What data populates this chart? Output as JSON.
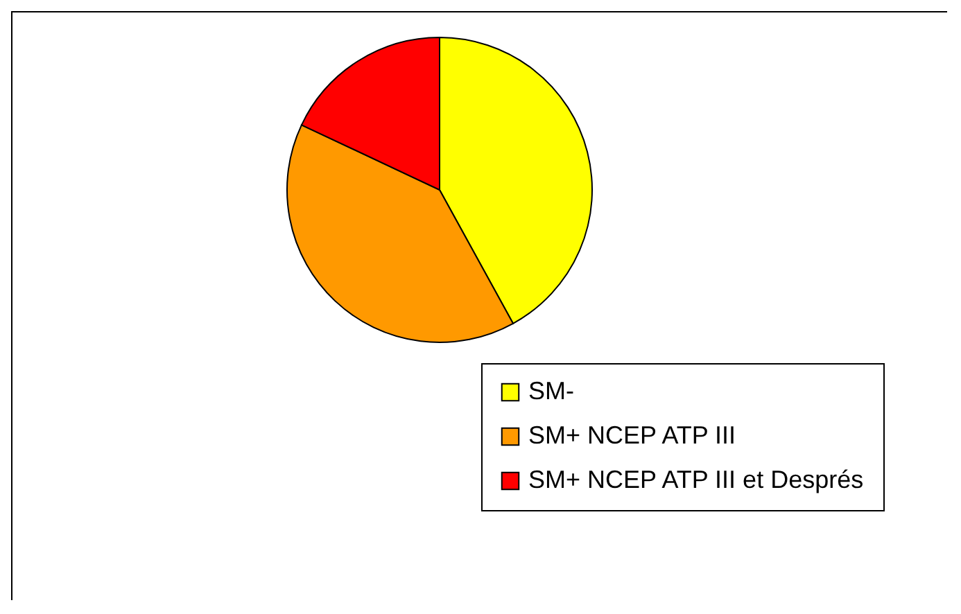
{
  "chart_data": {
    "type": "pie",
    "categories": [
      "SM-",
      "SM+ NCEP ATP III",
      "SM+ NCEP ATP III et Després"
    ],
    "values": [
      42,
      40,
      18
    ],
    "colors": [
      "#ffff00",
      "#ff9900",
      "#ff0000"
    ],
    "legend": "bottom right"
  }
}
